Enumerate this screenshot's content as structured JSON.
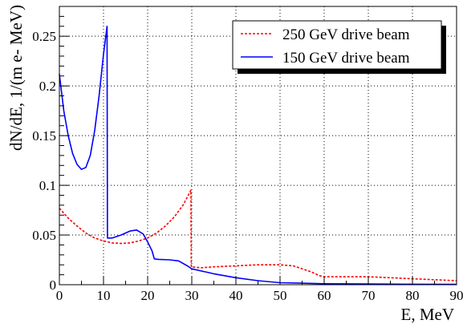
{
  "chart_data": {
    "type": "line",
    "xlabel": "E, MeV",
    "ylabel": "dN/dE, 1/(m e- MeV)",
    "xlim": [
      0,
      90
    ],
    "ylim": [
      0,
      0.28
    ],
    "x_ticks": [
      0,
      10,
      20,
      30,
      40,
      50,
      60,
      70,
      80,
      90
    ],
    "y_ticks": [
      0,
      0.05,
      0.1,
      0.15,
      0.2,
      0.25
    ],
    "y_tick_labels": [
      "0",
      "0.05",
      "0.1",
      "0.15",
      "0.2",
      "0.25"
    ],
    "grid": true,
    "legend_position": "top-right",
    "series": [
      {
        "name": "250 GeV drive beam",
        "color": "#ff0000",
        "dash": "dotted",
        "points": [
          [
            0,
            0.077
          ],
          [
            2,
            0.067
          ],
          [
            4,
            0.059
          ],
          [
            6,
            0.052
          ],
          [
            8,
            0.047
          ],
          [
            10,
            0.044
          ],
          [
            12,
            0.042
          ],
          [
            14,
            0.0415
          ],
          [
            16,
            0.042
          ],
          [
            18,
            0.044
          ],
          [
            20,
            0.047
          ],
          [
            22,
            0.052
          ],
          [
            24,
            0.059
          ],
          [
            26,
            0.068
          ],
          [
            28,
            0.08
          ],
          [
            29.8,
            0.095
          ],
          [
            29.9,
            0.018
          ],
          [
            32,
            0.017
          ],
          [
            35,
            0.018
          ],
          [
            40,
            0.019
          ],
          [
            45,
            0.02
          ],
          [
            50,
            0.02
          ],
          [
            53,
            0.019
          ],
          [
            55,
            0.016
          ],
          [
            57,
            0.013
          ],
          [
            59,
            0.009
          ],
          [
            60,
            0.008
          ],
          [
            65,
            0.008
          ],
          [
            70,
            0.008
          ],
          [
            75,
            0.007
          ],
          [
            80,
            0.006
          ],
          [
            85,
            0.005
          ],
          [
            90,
            0.004
          ]
        ]
      },
      {
        "name": "150 GeV drive beam",
        "color": "#0000ff",
        "dash": "solid",
        "points": [
          [
            0,
            0.212
          ],
          [
            1,
            0.175
          ],
          [
            2,
            0.15
          ],
          [
            3,
            0.132
          ],
          [
            4,
            0.121
          ],
          [
            5,
            0.116
          ],
          [
            6,
            0.118
          ],
          [
            7,
            0.13
          ],
          [
            8,
            0.155
          ],
          [
            9,
            0.19
          ],
          [
            10,
            0.232
          ],
          [
            10.8,
            0.26
          ],
          [
            10.9,
            0.047
          ],
          [
            12,
            0.047
          ],
          [
            14,
            0.05
          ],
          [
            16,
            0.054
          ],
          [
            17.5,
            0.055
          ],
          [
            19,
            0.051
          ],
          [
            20,
            0.043
          ],
          [
            21,
            0.034
          ],
          [
            21.5,
            0.026
          ],
          [
            22.5,
            0.0255
          ],
          [
            25,
            0.025
          ],
          [
            27,
            0.024
          ],
          [
            29,
            0.019
          ],
          [
            30,
            0.016
          ],
          [
            33,
            0.013
          ],
          [
            35,
            0.011
          ],
          [
            40,
            0.007
          ],
          [
            45,
            0.004
          ],
          [
            50,
            0.002
          ],
          [
            55,
            0.0015
          ],
          [
            60,
            0.001
          ],
          [
            70,
            0.0008
          ],
          [
            80,
            0.0005
          ],
          [
            90,
            0.0003
          ]
        ]
      }
    ]
  }
}
